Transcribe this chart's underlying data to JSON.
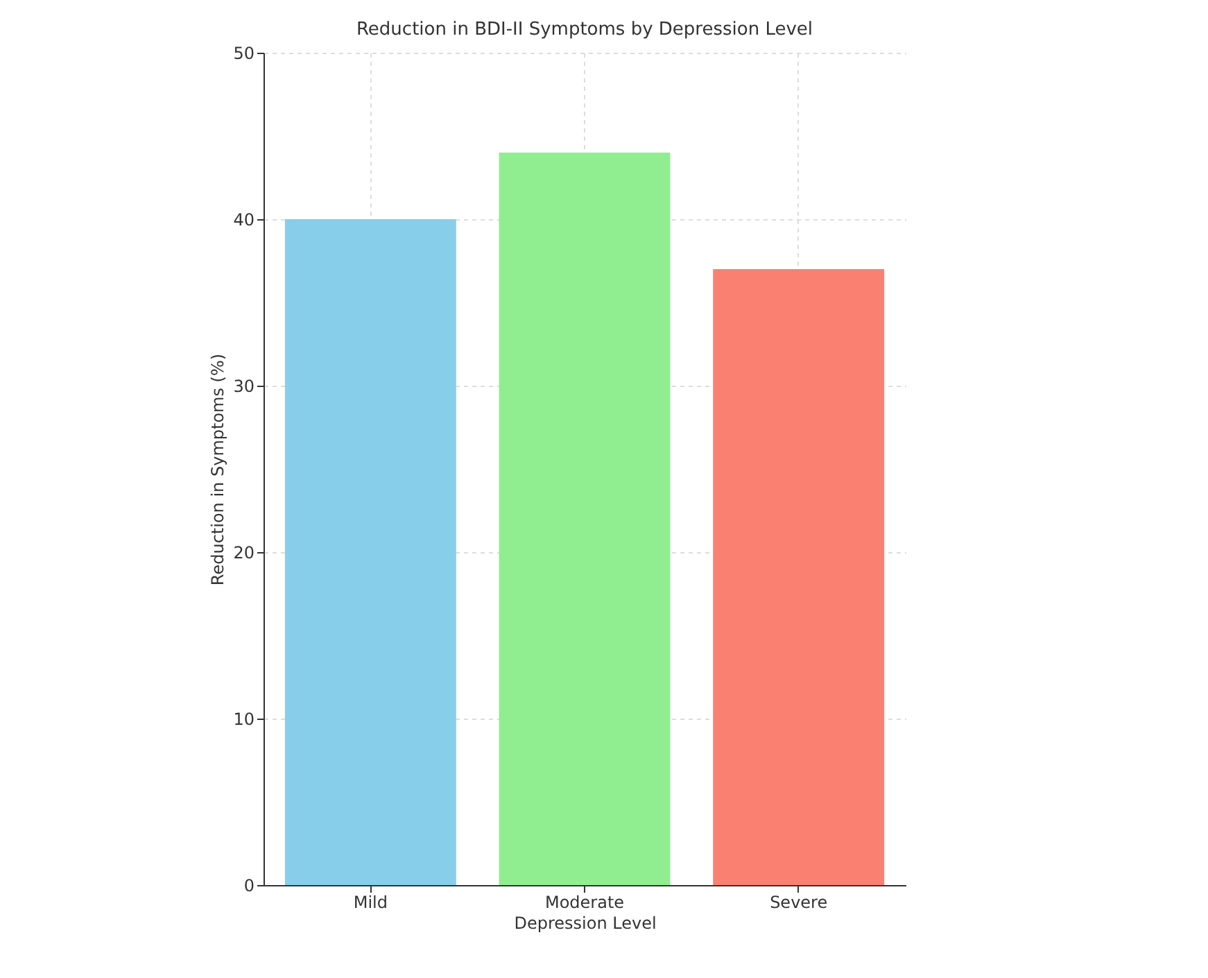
{
  "chart_data": {
    "type": "bar",
    "title": "Reduction in BDI-II Symptoms by Depression Level",
    "xlabel": "Depression Level",
    "ylabel": "Reduction in Symptoms (%)",
    "categories": [
      "Mild",
      "Moderate",
      "Severe"
    ],
    "values": [
      40,
      44,
      37
    ],
    "colors": [
      "#87ceeb",
      "#90ee90",
      "#fa8072"
    ],
    "ylim": [
      0,
      50
    ],
    "yticks": [
      0,
      10,
      20,
      30,
      40,
      50
    ],
    "grid": true
  }
}
